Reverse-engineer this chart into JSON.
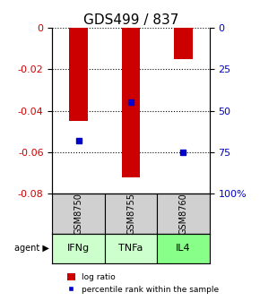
{
  "title": "GDS499 / 837",
  "samples": [
    "GSM8750",
    "GSM8755",
    "GSM8760"
  ],
  "agents": [
    "IFNg",
    "TNFa",
    "IL4"
  ],
  "log_ratios": [
    -0.045,
    -0.072,
    -0.015
  ],
  "percentile_ranks": [
    68,
    45,
    75
  ],
  "left_ylim": [
    0,
    -0.08
  ],
  "left_yticks": [
    0,
    -0.02,
    -0.04,
    -0.06,
    -0.08
  ],
  "right_yticks": [
    0,
    25,
    50,
    75,
    100
  ],
  "bar_color": "#cc0000",
  "marker_color": "#0000cc",
  "agent_colors": [
    "#ccffcc",
    "#ccffcc",
    "#88ff88"
  ],
  "sample_bg": "#d0d0d0",
  "grid_color": "#000000",
  "title_fontsize": 11,
  "legend_log_label": "log ratio",
  "legend_pct_label": "percentile rank within the sample"
}
